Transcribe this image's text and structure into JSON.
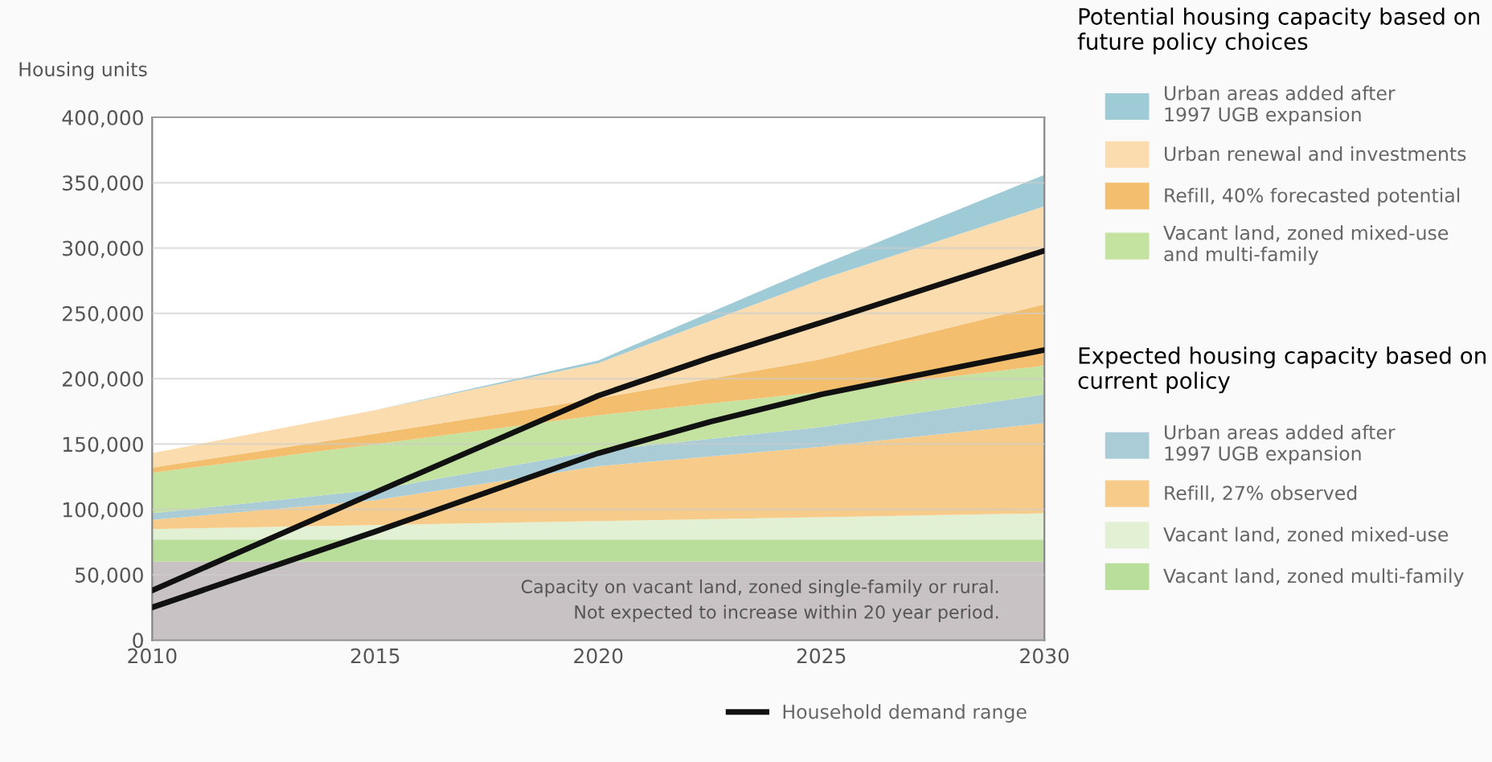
{
  "chart_data": {
    "type": "area",
    "stacked": true,
    "ylabel": "Housing units",
    "x": [
      2010,
      2015,
      2020,
      2025,
      2030
    ],
    "xlim": [
      2010,
      2030
    ],
    "xticks": [
      2010,
      2015,
      2020,
      2025,
      2030
    ],
    "ylim": [
      0,
      400000
    ],
    "yticks": [
      0,
      {
        "value": 50000,
        "label": "50,000"
      },
      {
        "value": 100000,
        "label": "100,000"
      },
      {
        "value": 150000,
        "label": "150,000"
      },
      {
        "value": 200000,
        "label": "200,000"
      },
      {
        "value": 250000,
        "label": "250,000"
      },
      {
        "value": 300000,
        "label": "300,000"
      },
      {
        "value": 350000,
        "label": "350,000"
      },
      {
        "value": 400000,
        "label": "400,000"
      }
    ],
    "grid": "y",
    "legend": "right",
    "series": [
      {
        "color": "#c9c2c4",
        "values": [
          60000,
          60000,
          60000,
          60000,
          60000
        ]
      },
      {
        "name": "Vacant land, zoned multi-family",
        "color": "#b9dd9a",
        "values": [
          17000,
          17000,
          17000,
          17000,
          17000
        ]
      },
      {
        "name": "Vacant land, zoned mixed-use",
        "color": "#e2f0d3",
        "values": [
          8000,
          11000,
          14000,
          17000,
          20000
        ]
      },
      {
        "name": "Refill, 27% observed",
        "color": "#f7cc8b",
        "values": [
          7000,
          19000,
          42000,
          54000,
          69000
        ]
      },
      {
        "name": "Urban areas added after\n1997 UGB expansion",
        "color": "#a9ccd6",
        "values": [
          5000,
          8000,
          12000,
          15000,
          22000
        ]
      },
      {
        "name": "Vacant land, zoned mixed-use\nand multi-family",
        "color": "#c4e3a0",
        "values": [
          31000,
          35000,
          27000,
          27000,
          22000
        ]
      },
      {
        "name": "Refill, 40% forecasted potential",
        "color": "#f3be6e",
        "values": [
          4000,
          8000,
          13000,
          25000,
          47000
        ]
      },
      {
        "name": "Urban renewal and investments",
        "color": "#fbdcae",
        "values": [
          11000,
          18000,
          27000,
          61000,
          75000
        ]
      },
      {
        "name": "Urban areas added after\n1997 UGB expansion",
        "color": "#9fcbd6",
        "values": [
          0,
          0,
          2000,
          11000,
          24000
        ]
      },
      {
        "type": "line",
        "name": "Household demand range",
        "color": "#111111",
        "x": [
          2010,
          2015,
          2020,
          2022.5,
          2025,
          2030
        ],
        "values": [
          38000,
          113000,
          187000,
          216000,
          243000,
          298000
        ]
      },
      {
        "type": "line",
        "color": "#111111",
        "x": [
          2010,
          2015,
          2020,
          2022.5,
          2025,
          2030
        ],
        "values": [
          25000,
          83000,
          143000,
          167000,
          188000,
          222000
        ]
      }
    ],
    "annotations": [
      "Potential housing capacity based on future policy choices",
      "Expected housing capacity based on current policy",
      "Capacity on vacant land, zoned single-family or rural.\nNot expected to increase within 20 year period."
    ]
  }
}
